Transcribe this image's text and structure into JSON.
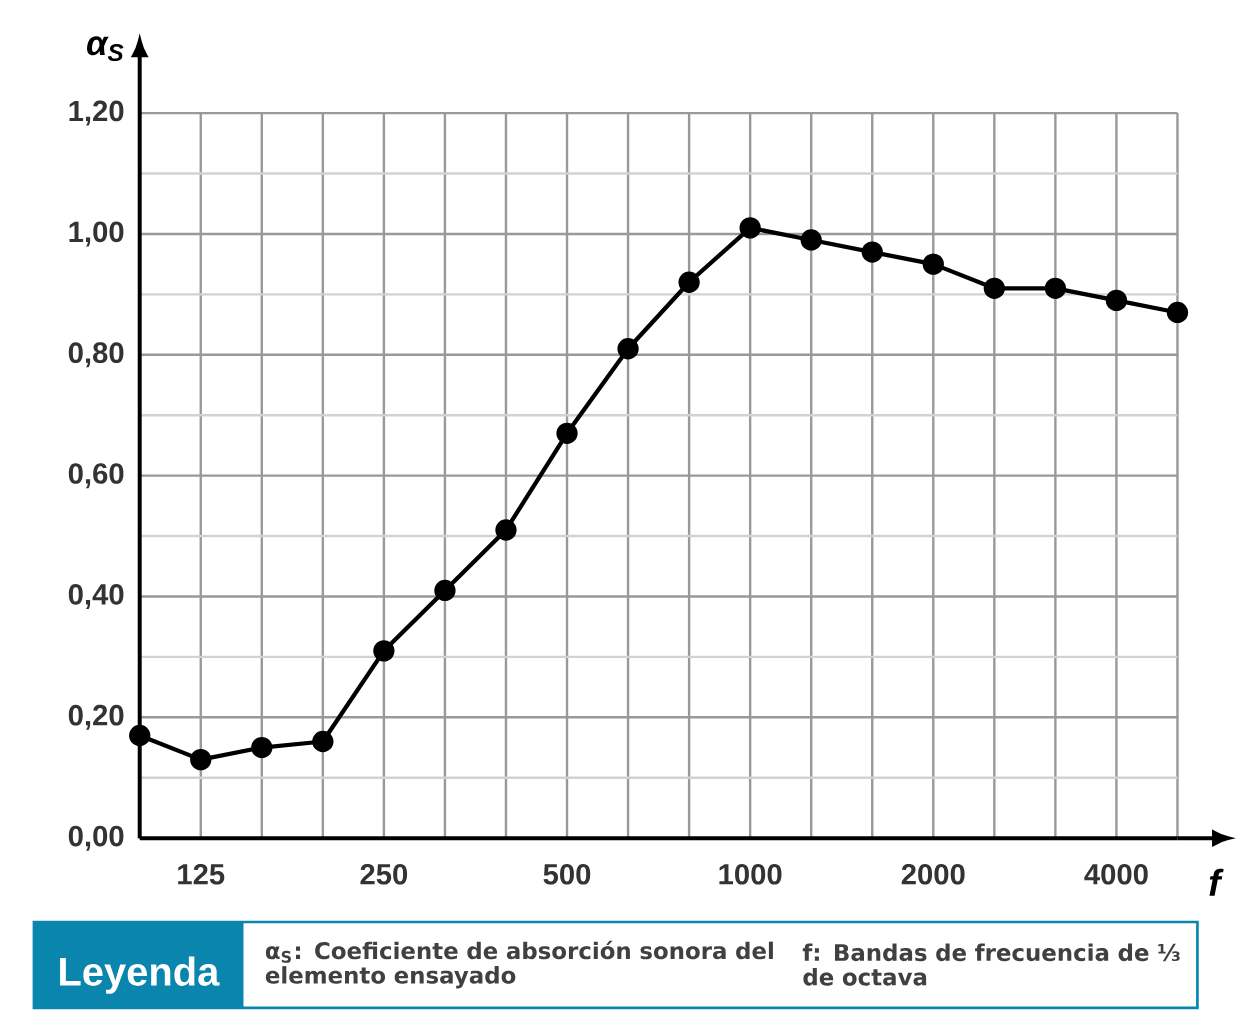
{
  "chart_data": {
    "type": "line",
    "ylabel": "α$_{S}$",
    "xlabel": "f",
    "categories": [
      null,
      "125",
      null,
      null,
      "250",
      null,
      null,
      "500",
      null,
      null,
      "1000",
      null,
      null,
      "2000",
      null,
      null,
      "4000",
      null
    ],
    "series": [
      {
        "color": "#000000",
        "values": [
          0.17,
          0.13,
          0.15,
          0.16,
          0.31,
          0.41,
          0.51,
          0.67,
          0.81,
          0.92,
          1.01,
          0.99,
          0.97,
          0.95,
          0.91,
          0.91,
          0.89,
          0.87
        ]
      }
    ],
    "ylim": [
      0,
      1.2
    ],
    "yticks": [
      {
        "value": 0,
        "label": "0,00"
      },
      {
        "value": 0.2,
        "label": "0,20"
      },
      {
        "value": 0.4,
        "label": "0,40"
      },
      {
        "value": 0.6,
        "label": "0,60"
      },
      {
        "value": 0.8,
        "label": "0,80"
      },
      {
        "value": 1.0,
        "label": "1,00"
      },
      {
        "value": 1.2,
        "label": "1,20"
      }
    ],
    "grid": true,
    "marker": "circle",
    "line_style": "solid",
    "annotations": [
      "Leyenda",
      "α$_{S}$: Coeficiente de absorción sonora del elemento ensayado",
      "f: Bandas de frecuencia de ⅓ de octava"
    ]
  }
}
